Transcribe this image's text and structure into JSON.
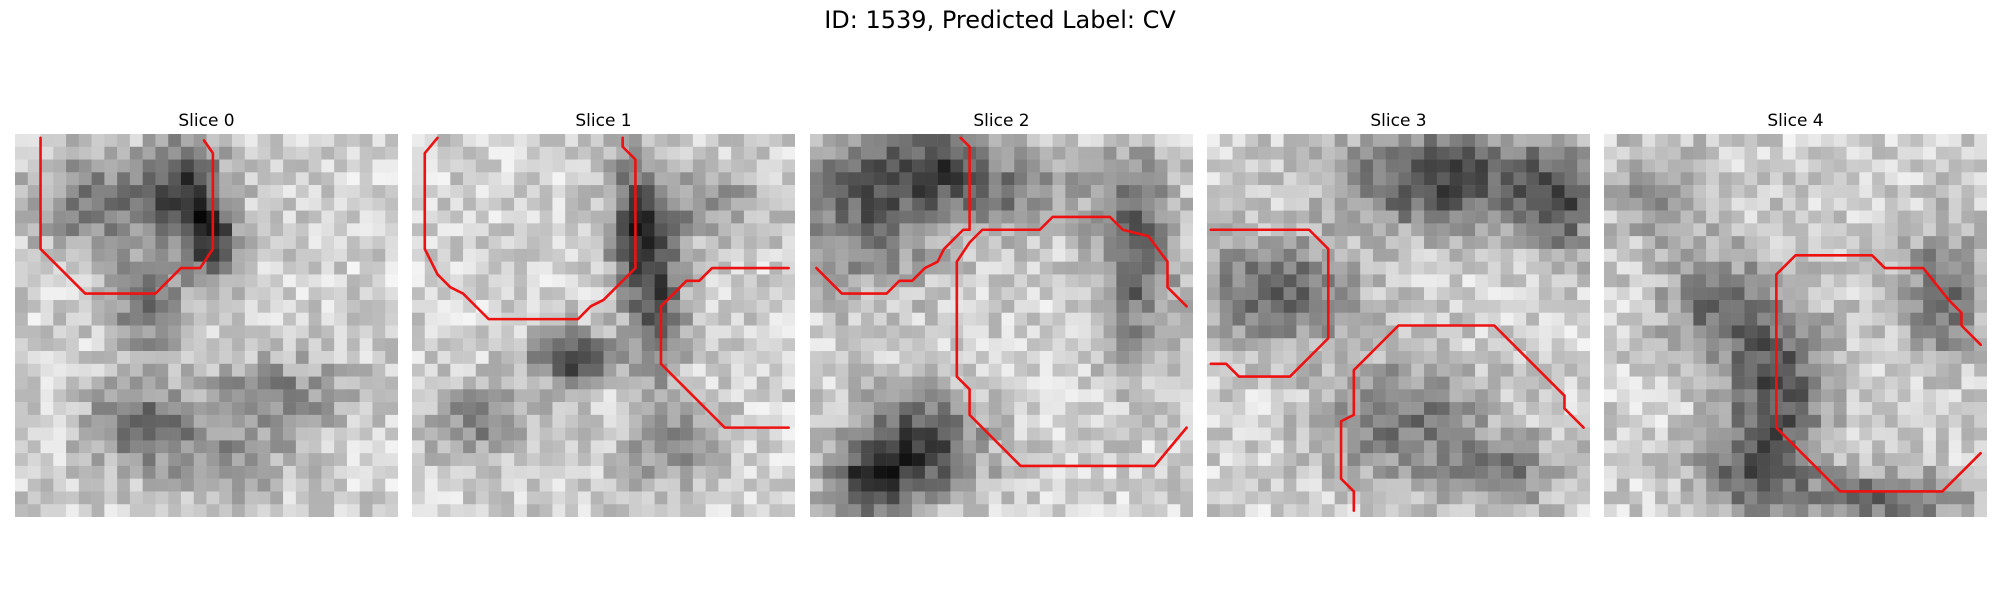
{
  "title": "ID: 1539, Predicted Label: CV",
  "colors": {
    "contour": "#ee1111"
  },
  "slices": [
    {
      "label": "Slice 0"
    },
    {
      "label": "Slice 1"
    },
    {
      "label": "Slice 2"
    },
    {
      "label": "Slice 3"
    },
    {
      "label": "Slice 4"
    }
  ]
}
